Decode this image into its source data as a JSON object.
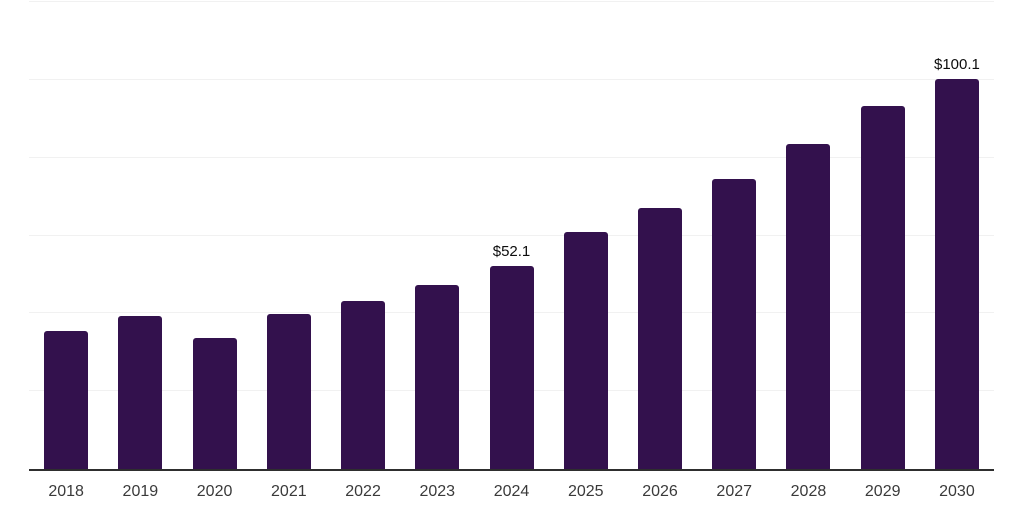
{
  "chart_data": {
    "type": "bar",
    "title": "",
    "xlabel": "",
    "ylabel": "",
    "categories": [
      "2018",
      "2019",
      "2020",
      "2021",
      "2022",
      "2023",
      "2024",
      "2025",
      "2026",
      "2027",
      "2028",
      "2029",
      "2030"
    ],
    "values": [
      35.5,
      39.3,
      33.6,
      39.9,
      43.1,
      47.2,
      52.1,
      60.9,
      67.0,
      74.6,
      83.6,
      93.4,
      100.1
    ],
    "data_labels": {
      "2024": "$52.1",
      "2030": "$100.1"
    },
    "ylim": [
      0,
      120
    ],
    "y_axis_labels_visible": false,
    "gridline_values": [
      20,
      40,
      60,
      80,
      100,
      120
    ],
    "grid": "horizontal",
    "legend_position": "none",
    "colors": {
      "bar": "#33114d",
      "gridline": "#f1f1f1",
      "axis_line": "#2e2e2e",
      "tick_label": "#3a3a3a",
      "data_label": "#0d0d0d",
      "background": "#ffffff"
    }
  }
}
